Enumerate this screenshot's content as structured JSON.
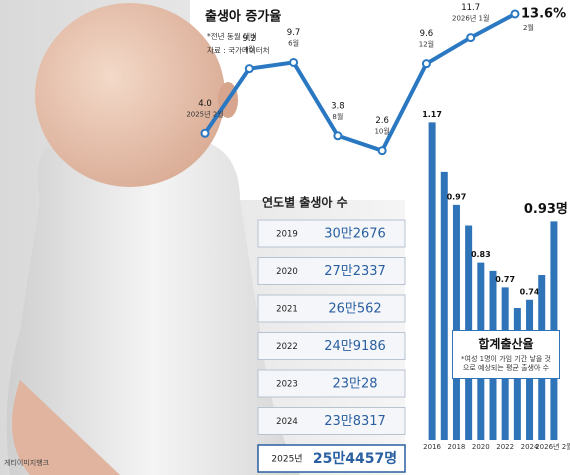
{
  "chart_data": [
    {
      "type": "line",
      "title": "출생아 증가율",
      "subtitle": "*전년 동월 대비",
      "source": "자료 : 국가데이터처",
      "categories": [
        "2025년 2월",
        "4월",
        "6월",
        "8월",
        "10월",
        "12월",
        "2026년 1월",
        "2월"
      ],
      "values": [
        4.0,
        9.2,
        9.7,
        3.8,
        2.6,
        9.6,
        11.7,
        13.6
      ],
      "value_labels": [
        "4.0",
        "9.2",
        "9.7",
        "3.8",
        "2.6",
        "9.6",
        "11.7",
        "13.6%"
      ],
      "color": "#2b78c2",
      "ylim": [
        0,
        14
      ]
    },
    {
      "type": "bar",
      "title": "합계출산율",
      "subtitle": "*여성 1명이 가임 기간 낳을 것으로 예상되는 평균 출생아 수",
      "categories": [
        "2016",
        null,
        "2018",
        null,
        "2020",
        null,
        "2022",
        null,
        "2024",
        null,
        "2026년 2월"
      ],
      "values": [
        1.17,
        1.05,
        0.97,
        0.92,
        0.83,
        0.81,
        0.77,
        0.72,
        0.74,
        0.8,
        0.93
      ],
      "value_labels": [
        "1.17",
        null,
        "0.97",
        null,
        "0.83",
        null,
        "0.77",
        null,
        "0.74",
        null,
        "0.93명"
      ],
      "color": "#2f74b8",
      "ylim": [
        0.4,
        1.2
      ]
    }
  ],
  "table": {
    "title": "연도별 출생아 수",
    "rows": [
      [
        "2019",
        "30만2676"
      ],
      [
        "2020",
        "27만2337"
      ],
      [
        "2021",
        "26만562"
      ],
      [
        "2022",
        "24만9186"
      ],
      [
        "2023",
        "23만28"
      ],
      [
        "2024",
        "23만8317"
      ],
      [
        "2025년",
        "25만4457명"
      ]
    ]
  },
  "credit": "게티이미지뱅크"
}
